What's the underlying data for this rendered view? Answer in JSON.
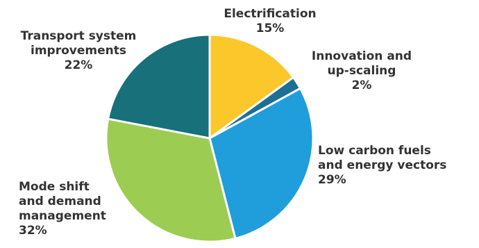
{
  "chart_data": {
    "type": "pie",
    "title": "",
    "slices": [
      {
        "label_lines": [
          "Electrification"
        ],
        "percent_text": "15%",
        "value": 15,
        "color": "#FCC72A"
      },
      {
        "label_lines": [
          "Innovation and",
          "up-scaling"
        ],
        "percent_text": "2%",
        "value": 2,
        "color": "#1D6F96"
      },
      {
        "label_lines": [
          "Low carbon fuels",
          "and energy  vectors"
        ],
        "percent_text": "29%",
        "value": 29,
        "color": "#209DDB"
      },
      {
        "label_lines": [
          "Mode shift",
          "and demand",
          "management"
        ],
        "percent_text": "32%",
        "value": 32,
        "color": "#9DCC52"
      },
      {
        "label_lines": [
          "Transport system",
          "improvements"
        ],
        "percent_text": "22%",
        "value": 22,
        "color": "#17707A"
      }
    ],
    "start_angle": "12 o'clock",
    "direction": "clockwise",
    "legend": "none",
    "slice_border_color": "#FFFFFF"
  }
}
